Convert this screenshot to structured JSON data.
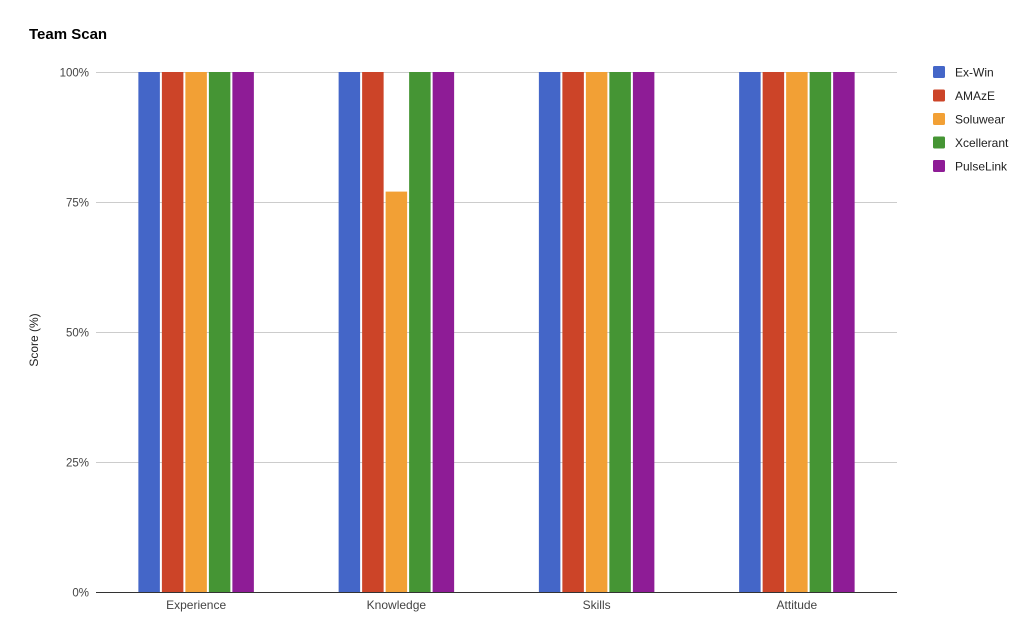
{
  "chart_data": {
    "type": "bar",
    "title": "Team Scan",
    "xlabel": "",
    "ylabel": "Score (%)",
    "ylim": [
      0,
      100
    ],
    "yticks": [
      0,
      25,
      50,
      75,
      100
    ],
    "ytick_labels": [
      "0%",
      "25%",
      "50%",
      "75%",
      "100%"
    ],
    "categories": [
      "Experience",
      "Knowledge",
      "Skills",
      "Attitude"
    ],
    "series": [
      {
        "name": "Ex-Win",
        "color": "#4466c8",
        "values": [
          100,
          100,
          100,
          100
        ]
      },
      {
        "name": "AMAzE",
        "color": "#cc4428",
        "values": [
          100,
          100,
          100,
          100
        ]
      },
      {
        "name": "Soluwear",
        "color": "#f2a035",
        "values": [
          100,
          77,
          100,
          100
        ]
      },
      {
        "name": "Xcellerant",
        "color": "#459534",
        "values": [
          100,
          100,
          100,
          100
        ]
      },
      {
        "name": "PulseLink",
        "color": "#8e1c96",
        "values": [
          100,
          100,
          100,
          100
        ]
      }
    ],
    "grid": true,
    "legend_position": "right"
  }
}
